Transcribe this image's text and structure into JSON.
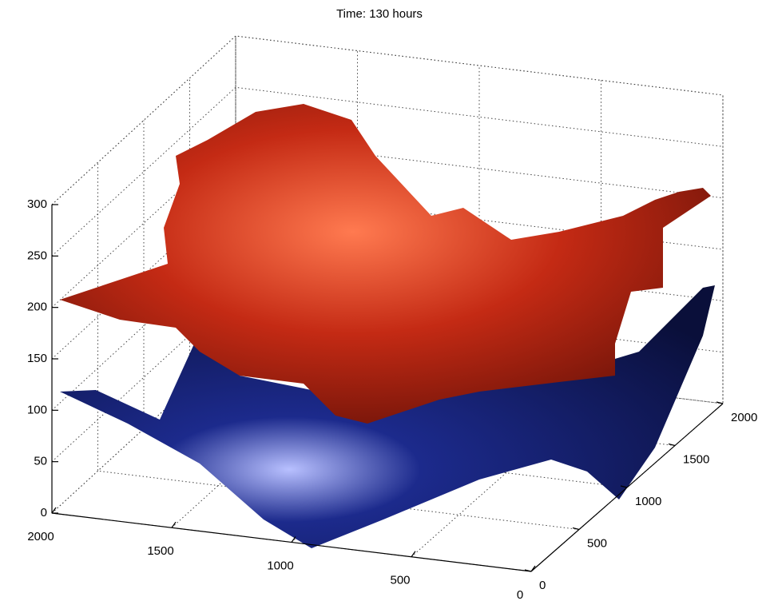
{
  "chart_data": {
    "type": "surface3d",
    "title": "Time: 130 hours",
    "xlim": [
      0,
      2000
    ],
    "xticks": [
      0,
      500,
      1000,
      1500,
      2000
    ],
    "ylim": [
      0,
      2000
    ],
    "yticks": [
      0,
      500,
      1000,
      1500,
      2000
    ],
    "zlim": [
      0,
      300
    ],
    "zticks": [
      0,
      50,
      100,
      150,
      200,
      250,
      300
    ],
    "grid": true,
    "surfaces": [
      {
        "color": "#1c2a8c"
      },
      {
        "color": "#c42a14"
      }
    ]
  }
}
